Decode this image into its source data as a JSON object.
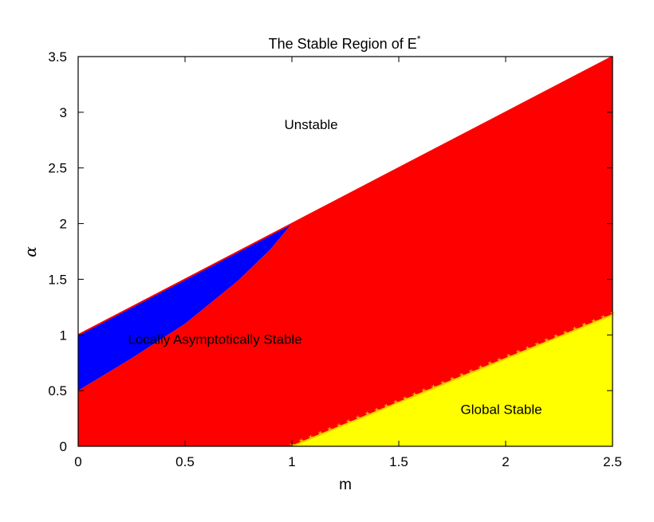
{
  "chart_data": {
    "type": "area",
    "title": "The Stable Region of E",
    "title_superscript": "*",
    "xlabel": "m",
    "ylabel": "α",
    "xlim": [
      0,
      2.5
    ],
    "ylim": [
      0,
      3.5
    ],
    "x_ticks": [
      "0",
      "0.5",
      "1",
      "1.5",
      "2",
      "2.5"
    ],
    "y_ticks": [
      "0",
      "0.5",
      "1",
      "1.5",
      "2",
      "2.5",
      "3",
      "3.5"
    ],
    "grid": false,
    "legend": "none",
    "regions": [
      {
        "label": "Unstable",
        "color": "#ffffff",
        "label_at": [
          1.09,
          2.85
        ],
        "polygon": [
          [
            0,
            1.0
          ],
          [
            1.0,
            2.0
          ],
          [
            2.5,
            3.5
          ],
          [
            0,
            3.5
          ]
        ]
      },
      {
        "label": "Locally Asymptotically Stable",
        "color": "#0000ff",
        "label_at": [
          0.64,
          0.92
        ],
        "polygon": [
          [
            0,
            0.5
          ],
          [
            0.25,
            0.79
          ],
          [
            0.5,
            1.1
          ],
          [
            0.75,
            1.49
          ],
          [
            0.9,
            1.77
          ],
          [
            1.0,
            2.0
          ],
          [
            0,
            1.0
          ]
        ]
      },
      {
        "label": "",
        "color": "#ff0000",
        "polygon": [
          [
            0,
            0
          ],
          [
            2.5,
            0
          ],
          [
            2.5,
            3.5
          ],
          [
            1.0,
            2.0
          ],
          [
            0.9,
            1.77
          ],
          [
            0.75,
            1.49
          ],
          [
            0.5,
            1.1
          ],
          [
            0.25,
            0.79
          ],
          [
            0,
            0.5
          ]
        ]
      },
      {
        "label": "Global Stable",
        "color": "#ffff00",
        "label_at": [
          1.98,
          0.29
        ],
        "polygon": [
          [
            1.0,
            0
          ],
          [
            2.5,
            0
          ],
          [
            2.5,
            1.18
          ]
        ]
      }
    ],
    "boundary_lines": [
      {
        "name": "upper",
        "color": "#ff0000",
        "points": [
          [
            0,
            1.0
          ],
          [
            1.0,
            2.0
          ],
          [
            2.5,
            3.5
          ]
        ]
      },
      {
        "name": "global",
        "color": "#ffcc00",
        "marker": "*",
        "points": [
          [
            1.0,
            0
          ],
          [
            2.5,
            1.18
          ]
        ]
      }
    ]
  }
}
